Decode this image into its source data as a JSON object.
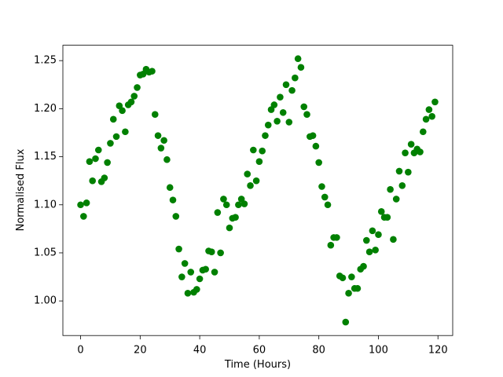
{
  "chart_data": {
    "type": "scatter",
    "xlabel": "Time (Hours)",
    "ylabel": "Normalised Flux",
    "color": "#008000",
    "x": [
      0,
      1,
      2,
      3,
      4,
      5,
      6,
      7,
      8,
      9,
      10,
      11,
      12,
      13,
      14,
      15,
      16,
      17,
      18,
      19,
      20,
      21,
      22,
      23,
      24,
      25,
      26,
      27,
      28,
      29,
      30,
      31,
      32,
      33,
      34,
      35,
      36,
      37,
      38,
      39,
      40,
      41,
      42,
      43,
      44,
      45,
      46,
      47,
      48,
      49,
      50,
      51,
      52,
      53,
      54,
      55,
      56,
      57,
      58,
      59,
      60,
      61,
      62,
      63,
      64,
      65,
      66,
      67,
      68,
      69,
      70,
      71,
      72,
      73,
      74,
      75,
      76,
      77,
      78,
      79,
      80,
      81,
      82,
      83,
      84,
      85,
      86,
      87,
      88,
      89,
      90,
      91,
      92,
      93,
      94,
      95,
      96,
      97,
      98,
      99,
      100,
      101,
      102,
      103,
      104,
      105,
      106,
      107,
      108,
      109,
      110,
      111,
      112,
      113,
      114,
      115,
      116,
      117,
      118,
      119
    ],
    "values": [
      1.1,
      1.088,
      1.102,
      1.145,
      1.125,
      1.148,
      1.157,
      1.124,
      1.128,
      1.144,
      1.164,
      1.189,
      1.171,
      1.203,
      1.198,
      1.176,
      1.204,
      1.207,
      1.213,
      1.222,
      1.235,
      1.236,
      1.241,
      1.238,
      1.239,
      1.194,
      1.172,
      1.159,
      1.167,
      1.147,
      1.118,
      1.105,
      1.088,
      1.054,
      1.025,
      1.039,
      1.008,
      1.03,
      1.009,
      1.012,
      1.023,
      1.032,
      1.033,
      1.052,
      1.051,
      1.03,
      1.092,
      1.05,
      1.106,
      1.1,
      1.076,
      1.086,
      1.087,
      1.1,
      1.106,
      1.101,
      1.132,
      1.12,
      1.157,
      1.125,
      1.145,
      1.156,
      1.172,
      1.183,
      1.199,
      1.204,
      1.187,
      1.212,
      1.196,
      1.225,
      1.186,
      1.219,
      1.232,
      1.252,
      1.243,
      1.202,
      1.194,
      1.171,
      1.172,
      1.161,
      1.144,
      1.119,
      1.108,
      1.1,
      1.058,
      1.066,
      1.066,
      1.026,
      1.024,
      0.978,
      1.008,
      1.025,
      1.013,
      1.013,
      1.033,
      1.036,
      1.063,
      1.051,
      1.073,
      1.053,
      1.069,
      1.093,
      1.087,
      1.087,
      1.116,
      1.064,
      1.106,
      1.135,
      1.12,
      1.154,
      1.134,
      1.163,
      1.154,
      1.158,
      1.155,
      1.176,
      1.189,
      1.199,
      1.192,
      1.207
    ],
    "xlim": [
      -5.95,
      124.95
    ],
    "ylim": [
      0.964,
      1.266
    ],
    "xticks": [
      0,
      20,
      40,
      60,
      80,
      100,
      120
    ],
    "yticks": [
      {
        "value": 1.0,
        "label": "1.00"
      },
      {
        "value": 1.05,
        "label": "1.05"
      },
      {
        "value": 1.1,
        "label": "1.10"
      },
      {
        "value": 1.15,
        "label": "1.15"
      },
      {
        "value": 1.2,
        "label": "1.20"
      },
      {
        "value": 1.25,
        "label": "1.25"
      }
    ],
    "grid": false
  }
}
